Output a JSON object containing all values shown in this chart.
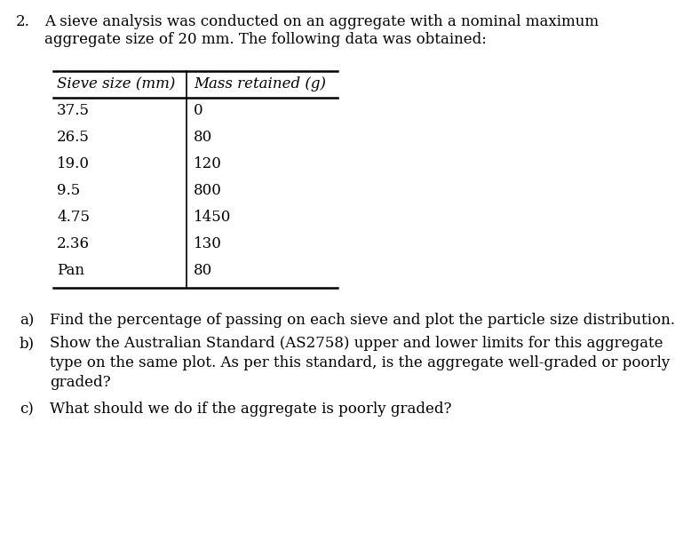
{
  "title_number": "2.",
  "title_text_line1": "A sieve analysis was conducted on an aggregate with a nominal maximum",
  "title_text_line2": "aggregate size of 20 mm. The following data was obtained:",
  "table_header": [
    "Sieve size (mm)",
    "Mass retained (g)"
  ],
  "table_rows": [
    [
      "37.5",
      "0"
    ],
    [
      "26.5",
      "80"
    ],
    [
      "19.0",
      "120"
    ],
    [
      "9.5",
      "800"
    ],
    [
      "4.75",
      "1450"
    ],
    [
      "2.36",
      "130"
    ],
    [
      "Pan",
      "80"
    ]
  ],
  "q_a_label": "a)",
  "q_a_text": "Find the percentage of passing on each sieve and plot the particle size distribution.",
  "q_b_label": "b)",
  "q_b_line1": "Show the Australian Standard (AS2758) upper and lower limits for this aggregate",
  "q_b_line2": "type on the same plot. As per this standard, is the aggregate well-graded or poorly",
  "q_b_line3": "graded?",
  "q_c_label": "c)",
  "q_c_text": "What should we do if the aggregate is poorly graded?",
  "bg_color": "#ffffff",
  "text_color": "#000000",
  "font_size": 12.0,
  "font_size_header": 12.0
}
